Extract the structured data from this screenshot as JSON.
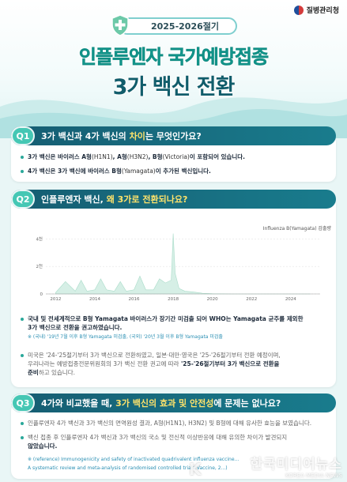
{
  "header": {
    "agency": "질병관리청",
    "season": "2025-2026절기",
    "title_line1": "인플루엔자 국가예방접종",
    "title_line2": "3가 백신 전환"
  },
  "q1": {
    "badge": "Q1",
    "question_pre": "3가 백신과 4가 백신의 ",
    "question_hl": "차이",
    "question_post": "는 무엇인가요?",
    "bullets": [
      {
        "pre": "3가 백신은 바이러스 A형",
        "mid1": "(H1N1)",
        "b1": ", A형",
        "mid2": "(H3N2)",
        "b2": ", B형",
        "mid3": "(Victoria)",
        "post": "이 포함되어 있습니다."
      },
      {
        "pre": "4가 백신은 3가 백신에 바이러스 B형",
        "mid1": "(Yamagata)",
        "post": "이 추가된 백신입니다."
      }
    ]
  },
  "q2": {
    "badge": "Q2",
    "question_pre": "인플루엔자 백신, ",
    "question_hl": "왜 3가로 전환되나요?",
    "bullet1_line1": "국내 및 전세계적으로 B형 Yamagata 바이러스가 장기간 미검출 되어 WHO는 Yamagata 균주를 제외한",
    "bullet1_line2": "3가 백신으로 전환을 권고하였습니다.",
    "bullet1_note": "※ (국내) '19년 7월 이후 B형 Yamagata 미검출, (국외) '20년 3월 이후 B형 Yamagata 미검출",
    "bullet2_line1": "미국은 '24-'25절기부터 3가 백신으로 전환하였고, 일본·대만·영국은 '25-'26절기부터 전환 예정이며,",
    "bullet2_line2_pre": "우리나라는 예방접종전문위원회의 3가 백신 전환 권고에 따라 ",
    "bullet2_line2_b": "'25-'26절기부터 3가 백신으로 전환을",
    "bullet2_line3_b": "준비",
    "bullet2_line3_post": "하고 있습니다."
  },
  "q3": {
    "badge": "Q3",
    "question_pre": "4가와 비교했을 때, ",
    "question_hl": "3가 백신의 효과 및 안전성",
    "question_post": "에 문제는 없나요?",
    "bullet1": "인플루엔자 4가 백신과 3가 백신의 면역원성 결과, A형(H1N1), H3N2) 및 B형에 대해 유사한 효능을 보였습니다.",
    "bullet2_line1": "백신 접종 후 인플루엔자 4가 백신과 3가 백신의 국소 및 전신적 이상반응에 대해 유의한 차이가 발견되지",
    "bullet2_line2": "않았습니다.",
    "ref_line1": "※ (reference) Immunogenicity and safety of inactivated quadrivalent influenza vaccine...",
    "ref_line2": "A systematic review and meta-analysis of randomised controlled trials(Vaccine, 2...)"
  },
  "watermark": {
    "main": "한국미디어뉴스",
    "sub": "KOREA MEDIA NEWS",
    "logo": "K"
  },
  "chart_data": {
    "type": "area",
    "series": [
      {
        "name": "Influenza B(Yamagata) 검출량",
        "color": "#d6efe6"
      }
    ],
    "x": [
      2012,
      2012.5,
      2013,
      2013.3,
      2013.6,
      2014,
      2014.3,
      2014.6,
      2015,
      2015.3,
      2015.6,
      2016,
      2016.3,
      2016.6,
      2017,
      2017.3,
      2017.6,
      2017.9,
      2018,
      2018.1,
      2018.3,
      2018.6,
      2019,
      2019.5,
      2020,
      2021,
      2022,
      2023,
      2024,
      2025
    ],
    "values": [
      100,
      900,
      200,
      1000,
      200,
      300,
      1100,
      300,
      200,
      900,
      200,
      300,
      1300,
      300,
      300,
      1100,
      800,
      1000,
      4400,
      1500,
      400,
      200,
      150,
      50,
      20,
      0,
      0,
      0,
      0,
      0
    ],
    "xticks": [
      "2012",
      "2014",
      "2016",
      "2018",
      "2020",
      "2022",
      "2024"
    ],
    "yticks": [
      "0",
      "2천",
      "4천"
    ],
    "xlim": [
      2011.5,
      2025.5
    ],
    "ylim": [
      0,
      4600
    ],
    "legend": "top-right",
    "grid": true
  },
  "colors": {
    "accent": "#18a59a",
    "navy": "#115d6b",
    "highlight": "#ffe36b",
    "badge": "#45c7b4"
  }
}
